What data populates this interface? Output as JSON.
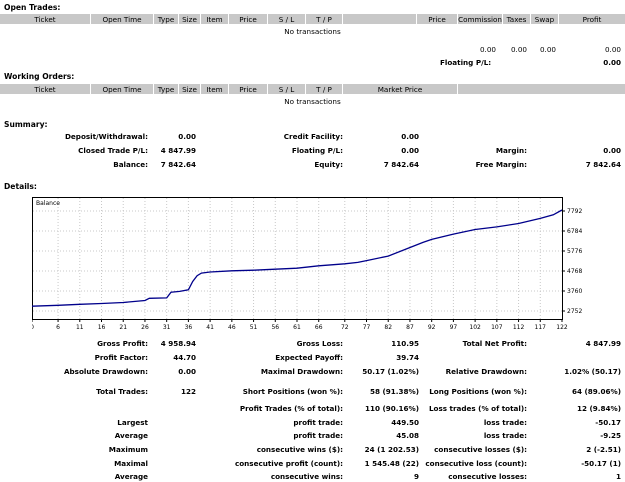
{
  "open_trades": {
    "title": "Open Trades:",
    "columns": [
      "Ticket",
      "Open Time",
      "Type",
      "Size",
      "Item",
      "Price",
      "S / L",
      "T / P",
      "Price",
      "Commission",
      "Taxes",
      "Swap",
      "Profit"
    ],
    "empty_text": "No transactions",
    "totals": [
      "0.00",
      "0.00",
      "0.00",
      "0.00"
    ],
    "floating_label": "Floating P/L:",
    "floating_value": "0.00"
  },
  "working_orders": {
    "title": "Working Orders:",
    "columns": [
      "Ticket",
      "Open Time",
      "Type",
      "Size",
      "Item",
      "Price",
      "S / L",
      "T / P",
      "Market Price"
    ],
    "empty_text": "No transactions"
  },
  "summary": {
    "title": "Summary:",
    "deposit_label": "Deposit/Withdrawal:",
    "deposit_value": "0.00",
    "credit_label": "Credit Facility:",
    "credit_value": "0.00",
    "closed_label": "Closed Trade P/L:",
    "closed_value": "4 847.99",
    "floating_label": "Floating P/L:",
    "floating_value": "0.00",
    "margin_label": "Margin:",
    "margin_value": "0.00",
    "balance_label": "Balance:",
    "balance_value": "7 842.64",
    "equity_label": "Equity:",
    "equity_value": "7 842.64",
    "free_margin_label": "Free Margin:",
    "free_margin_value": "7 842.64"
  },
  "details": {
    "title": "Details:",
    "rows": [
      {
        "c1": "Gross Profit:",
        "v1": "4 958.94",
        "c2": "Gross Loss:",
        "v2": "110.95",
        "c3": "Total Net Profit:",
        "v3": "4 847.99"
      },
      {
        "c1": "Profit Factor:",
        "v1": "44.70",
        "c2": "Expected Payoff:",
        "v2": "39.74",
        "c3": "",
        "v3": ""
      },
      {
        "c1": "Absolute Drawdown:",
        "v1": "0.00",
        "c2": "Maximal Drawdown:",
        "v2": "50.17 (1.02%)",
        "c3": "Relative Drawdown:",
        "v3": "1.02% (50.17)"
      },
      {
        "c1": "Total Trades:",
        "v1": "122",
        "c2": "Short Positions (won %):",
        "v2": "58 (91.38%)",
        "c3": "Long Positions (won %):",
        "v3": "64 (89.06%)"
      },
      {
        "c1": "",
        "v1": "",
        "c2": "Profit Trades (% of total):",
        "v2": "110 (90.16%)",
        "c3": "Loss trades (% of total):",
        "v3": "12 (9.84%)"
      },
      {
        "c1": "Largest",
        "v1": "",
        "c2": "profit trade:",
        "v2": "449.50",
        "c3": "loss trade:",
        "v3": "-50.17"
      },
      {
        "c1": "Average",
        "v1": "",
        "c2": "profit trade:",
        "v2": "45.08",
        "c3": "loss trade:",
        "v3": "-9.25"
      },
      {
        "c1": "Maximum",
        "v1": "",
        "c2": "consecutive wins ($):",
        "v2": "24 (1 202.53)",
        "c3": "consecutive losses ($):",
        "v3": "2 (-2.51)"
      },
      {
        "c1": "Maximal",
        "v1": "",
        "c2": "consecutive profit (count):",
        "v2": "1 545.48 (22)",
        "c3": "consecutive loss (count):",
        "v3": "-50.17 (1)"
      },
      {
        "c1": "Average",
        "v1": "",
        "c2": "consecutive wins:",
        "v2": "9",
        "c3": "consecutive losses:",
        "v3": "1"
      }
    ]
  },
  "chart_data": {
    "type": "line",
    "legend": "Balance",
    "series_color": "#00008b",
    "xlim": [
      0,
      122
    ],
    "ylim": [
      2752,
      7792
    ],
    "x_ticks": [
      "0",
      "6",
      "11",
      "16",
      "21",
      "26",
      "31",
      "36",
      "41",
      "46",
      "51",
      "56",
      "61",
      "66",
      "72",
      "77",
      "82",
      "87",
      "92",
      "97",
      "102",
      "107",
      "112",
      "117",
      "122"
    ],
    "y_ticks": [
      "7792",
      "6784",
      "5776",
      "4768",
      "3760",
      "2752"
    ],
    "x": [
      0,
      6,
      11,
      16,
      21,
      26,
      27,
      31,
      32,
      34,
      36,
      37,
      38,
      39,
      41,
      46,
      51,
      56,
      61,
      66,
      72,
      75,
      77,
      82,
      87,
      90,
      92,
      97,
      102,
      107,
      112,
      117,
      120,
      122
    ],
    "y": [
      2995,
      3040,
      3090,
      3130,
      3180,
      3280,
      3390,
      3410,
      3700,
      3740,
      3820,
      4240,
      4530,
      4660,
      4720,
      4780,
      4810,
      4860,
      4910,
      5030,
      5130,
      5200,
      5290,
      5520,
      5950,
      6210,
      6360,
      6630,
      6860,
      6990,
      7160,
      7420,
      7600,
      7842
    ]
  }
}
